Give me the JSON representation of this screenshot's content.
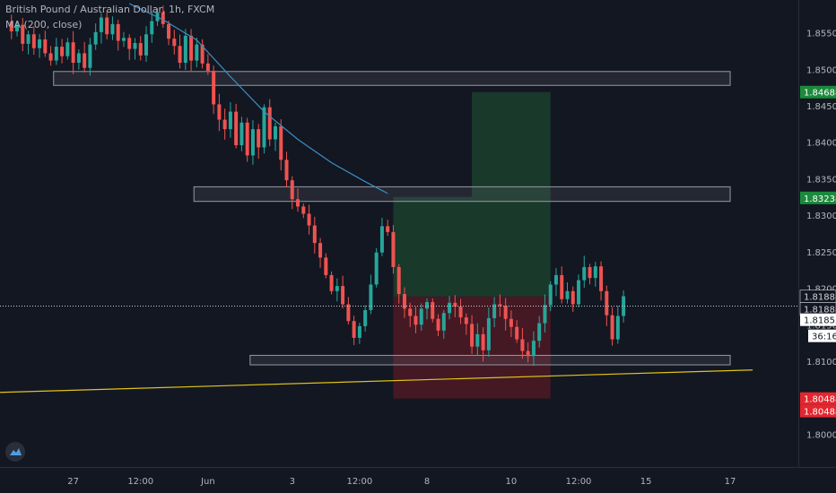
{
  "header": {
    "symbol_title": "British Pound / Australian Dollar, 1h, FXCM",
    "indicator": "MA (200, close)"
  },
  "logo": {
    "icon": "tradingview-cloud-icon"
  },
  "colors": {
    "background": "#131722",
    "up": "#26a69a",
    "down": "#ef5350",
    "ma": "#3a8fc4",
    "trendline": "#e0c419",
    "zone_fill": "rgba(120,123,134,0.18)",
    "zone_border": "#787b86",
    "profit": "rgba(38,120,60,0.35)",
    "loss": "rgba(160,30,40,0.35)",
    "axis_text": "#b2b5be"
  },
  "chart_data": {
    "type": "candlestick",
    "title": "British Pound / Australian Dollar, 1h, FXCM",
    "ylim": [
      1.7955,
      1.8595
    ],
    "y_ticks": [
      "1.85500",
      "1.85000",
      "1.84500",
      "1.84000",
      "1.83500",
      "1.83000",
      "1.82500",
      "1.82000",
      "1.81500",
      "1.81000",
      "1.80500",
      "1.80000"
    ],
    "y_tick_values": [
      1.855,
      1.85,
      1.845,
      1.84,
      1.835,
      1.83,
      1.825,
      1.82,
      1.815,
      1.81,
      1.805,
      1.8
    ],
    "x_ticks": [
      "27",
      "12:00",
      "Jun",
      "3",
      "12:00",
      "8",
      "10",
      "12:00",
      "15",
      "17"
    ],
    "x_tick_index": [
      12,
      24,
      36,
      51,
      63,
      75,
      90,
      102,
      114,
      129
    ],
    "close_path": [
      1.8565,
      1.8552,
      1.8561,
      1.8535,
      1.8548,
      1.8529,
      1.8541,
      1.8522,
      1.8512,
      1.8531,
      1.8518,
      1.8537,
      1.8509,
      1.8522,
      1.8502,
      1.8534,
      1.8551,
      1.8571,
      1.8548,
      1.8562,
      1.8539,
      1.8543,
      1.8528,
      1.8536,
      1.8519,
      1.8548,
      1.8566,
      1.8578,
      1.8562,
      1.8542,
      1.8532,
      1.8509,
      1.8546,
      1.8512,
      1.8534,
      1.8508,
      1.8498,
      1.8452,
      1.8431,
      1.8418,
      1.8442,
      1.8396,
      1.8427,
      1.8382,
      1.8418,
      1.8393,
      1.8448,
      1.8404,
      1.8422,
      1.8376,
      1.8348,
      1.8322,
      1.8312,
      1.8302,
      1.8286,
      1.8262,
      1.8242,
      1.8218,
      1.8196,
      1.8203,
      1.8178,
      1.8155,
      1.8132,
      1.8148,
      1.817,
      1.8205,
      1.8249,
      1.8285,
      1.8277,
      1.8229,
      1.8192,
      1.8172,
      1.8162,
      1.815,
      1.8172,
      1.8181,
      1.8158,
      1.8142,
      1.8166,
      1.818,
      1.8175,
      1.816,
      1.8151,
      1.812,
      1.8137,
      1.8115,
      1.8159,
      1.8178,
      1.8176,
      1.8158,
      1.8147,
      1.813,
      1.8114,
      1.8107,
      1.8128,
      1.8152,
      1.8177,
      1.8205,
      1.8218,
      1.8185,
      1.8196,
      1.8178,
      1.8211,
      1.8229,
      1.8214,
      1.823,
      1.8196,
      1.8163,
      1.813,
      1.8162,
      1.8189
    ],
    "ma_path": [
      [
        22,
        1.859
      ],
      [
        28,
        1.8568
      ],
      [
        34,
        1.854
      ],
      [
        40,
        1.849
      ],
      [
        46,
        1.8442
      ],
      [
        52,
        1.8404
      ],
      [
        58,
        1.8372
      ],
      [
        64,
        1.8346
      ],
      [
        68,
        1.833
      ]
    ],
    "trendline": {
      "x0": -2,
      "y0": 1.8057,
      "x1": 133,
      "y1": 1.8088
    },
    "zones": [
      {
        "x0": 8.5,
        "x1": 129,
        "top": 1.8497,
        "bottom": 1.8478
      },
      {
        "x0": 33.5,
        "x1": 129,
        "top": 1.8339,
        "bottom": 1.8319
      },
      {
        "x0": 43.5,
        "x1": 129,
        "top": 1.8108,
        "bottom": 1.8095
      }
    ],
    "position": {
      "x_start": 69,
      "x_end": 97,
      "entry": 1.81888,
      "target": 1.84688,
      "stop": 1.80488,
      "target_x_start": 83
    },
    "price_labels": [
      {
        "text": "1.84688",
        "value": 1.84688,
        "style": "profit"
      },
      {
        "text": "1.83238",
        "value": 1.83238,
        "style": "profit"
      },
      {
        "text": "1.81888",
        "value": 1.81888,
        "style": "line"
      },
      {
        "text": "1.81888",
        "value": 1.81888,
        "style": "line2"
      },
      {
        "text": "1.81855",
        "value": 1.81855,
        "style": "current"
      },
      {
        "text": "36:16",
        "value": 1.81855,
        "style": "countdown"
      },
      {
        "text": "1.80488",
        "value": 1.80488,
        "style": "loss"
      },
      {
        "text": "1.80488",
        "value": 1.80488,
        "style": "loss2"
      }
    ]
  }
}
